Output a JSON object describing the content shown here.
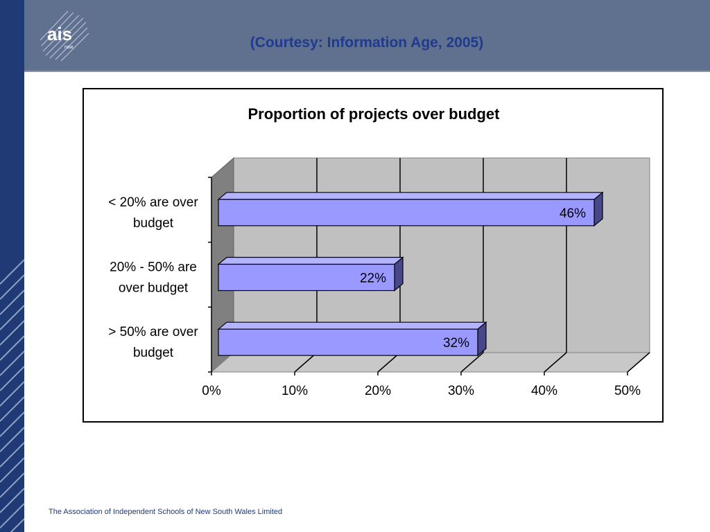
{
  "header": {
    "logo_text": "ais",
    "logo_sub": "nsw",
    "title": "(Courtesy: Information Age, 2005)"
  },
  "footer": {
    "text": "The Association of Independent Schools of New South Wales Limited"
  },
  "colors": {
    "header_band": "#60708f",
    "left_bar": "#1f3a75",
    "title": "#1f3a8f",
    "bar_front": "#9999ff",
    "bar_top": "#b3b3ff",
    "bar_side": "#47478a",
    "plot_back": "#c0c0c0"
  },
  "chart_data": {
    "type": "bar",
    "orientation": "horizontal",
    "style": "3d",
    "title": "Proportion of projects over budget",
    "categories": [
      "< 20% are over budget",
      "20% - 50% are over budget",
      "> 50% are over budget"
    ],
    "category_lines": [
      [
        "< 20% are over",
        "budget"
      ],
      [
        "20% - 50% are",
        "over budget"
      ],
      [
        "> 50% are over",
        "budget"
      ]
    ],
    "values": [
      0.46,
      0.22,
      0.32
    ],
    "data_labels": [
      "46%",
      "22%",
      "32%"
    ],
    "xlim": [
      0,
      0.5
    ],
    "x_ticks": [
      0,
      0.1,
      0.2,
      0.3,
      0.4,
      0.5
    ],
    "x_tick_labels": [
      "0%",
      "10%",
      "20%",
      "30%",
      "40%",
      "50%"
    ],
    "grid": true,
    "legend": "none"
  }
}
